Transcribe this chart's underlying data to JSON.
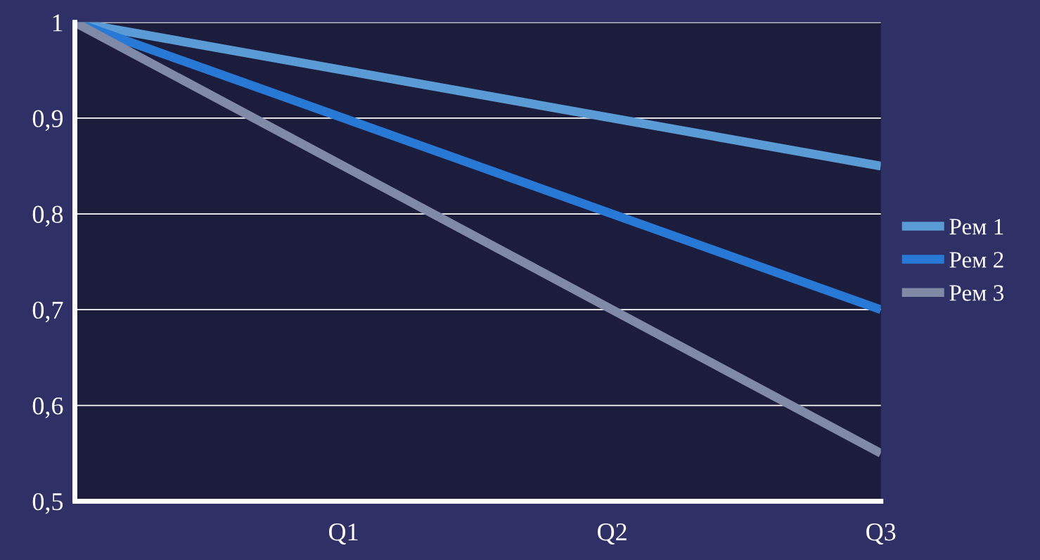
{
  "chart_data": {
    "type": "line",
    "categories": [
      null,
      "Q1",
      "Q2",
      "Q3"
    ],
    "series": [
      {
        "name": "Рем 1",
        "color": "#5b9bd5",
        "values": [
          1,
          0.95,
          0.9,
          0.85
        ]
      },
      {
        "name": "Рем 2",
        "color": "#2878d6",
        "values": [
          1,
          0.9,
          0.8,
          0.7
        ]
      },
      {
        "name": "Рем 3",
        "color": "#8089a6",
        "values": [
          1,
          0.85,
          0.7,
          0.55
        ]
      }
    ],
    "ylim": [
      0.5,
      1
    ],
    "yticks": [
      {
        "value": 0.5,
        "label": "0,5"
      },
      {
        "value": 0.6,
        "label": "0,6"
      },
      {
        "value": 0.7,
        "label": "0,7"
      },
      {
        "value": 0.8,
        "label": "0,8"
      },
      {
        "value": 0.9,
        "label": "0,9"
      },
      1
    ],
    "grid": "y",
    "legend": "right",
    "marker": "none",
    "line_style": "solid"
  }
}
